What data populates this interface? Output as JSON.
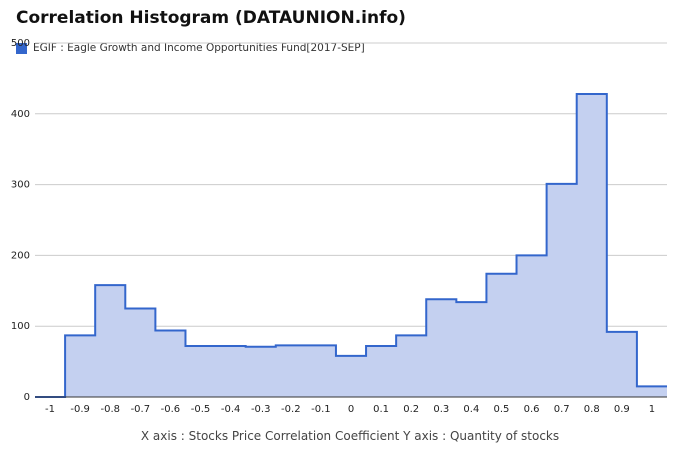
{
  "title": "Correlation Histogram (DATAUNION.info)",
  "legend": {
    "label": "EGIF : Eagle Growth and Income Opportunities Fund[2017-SEP]"
  },
  "caption": "X axis : Stocks Price Correlation Coefficient  Y axis : Quantity of stocks",
  "colors": {
    "line": "#3366cc",
    "fill": "#c4d0f0",
    "grid": "#cccccc"
  },
  "chart_data": {
    "type": "area",
    "title": "Correlation Histogram (DATAUNION.info)",
    "legend_position": "top-left",
    "grid": true,
    "xlabel": "Stocks Price Correlation Coefficient",
    "ylabel": "Quantity of stocks",
    "xlim": [
      -1.05,
      1.05
    ],
    "ylim": [
      0,
      500
    ],
    "x_ticks": [
      "-1",
      "-0.9",
      "-0.8",
      "-0.7",
      "-0.6",
      "-0.5",
      "-0.4",
      "-0.3",
      "-0.2",
      "-0.1",
      "0",
      "0.1",
      "0.2",
      "0.3",
      "0.4",
      "0.5",
      "0.6",
      "0.7",
      "0.8",
      "0.9",
      "1"
    ],
    "y_ticks": [
      0,
      100,
      200,
      300,
      400,
      500
    ],
    "series": [
      {
        "name": "EGIF : Eagle Growth and Income Opportunities Fund[2017-SEP]",
        "x": [
          -1,
          -0.9,
          -0.8,
          -0.7,
          -0.6,
          -0.5,
          -0.4,
          -0.3,
          -0.2,
          -0.1,
          0,
          0.1,
          0.2,
          0.3,
          0.4,
          0.5,
          0.6,
          0.7,
          0.8,
          0.9,
          1
        ],
        "values": [
          0,
          87,
          158,
          125,
          94,
          72,
          72,
          71,
          73,
          73,
          58,
          72,
          87,
          138,
          134,
          174,
          200,
          301,
          428,
          92,
          15
        ]
      }
    ]
  }
}
